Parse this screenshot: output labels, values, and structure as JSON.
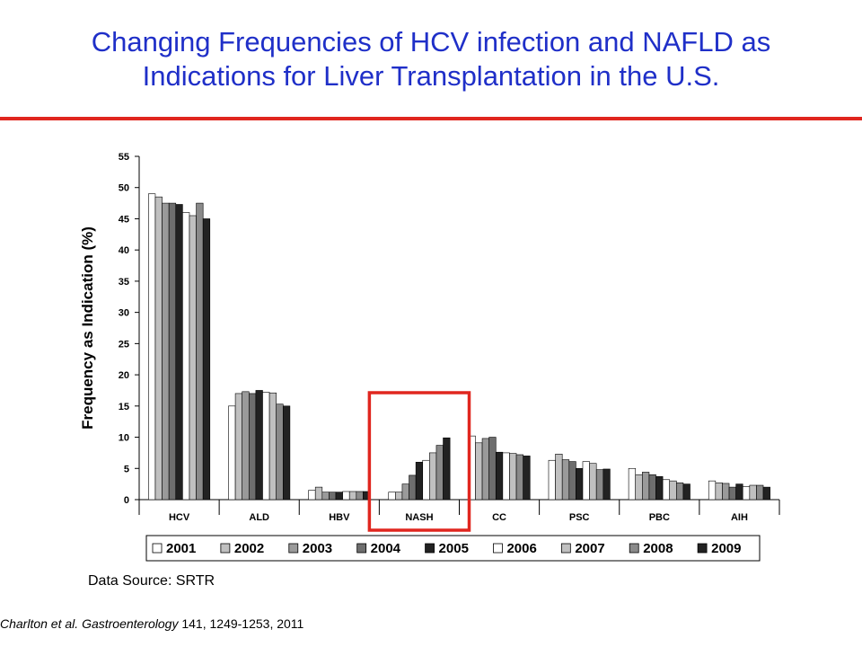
{
  "slide": {
    "title_line1": "Changing Frequencies of HCV infection and NAFLD as",
    "title_line2": "Indications for Liver Transplantation in the U.S.",
    "data_source": "Data Source: SRTR",
    "citation_authors": "Charlton et al.",
    "citation_journal": "Gastroenterology",
    "citation_rest": "141, 1249-1253, 2011",
    "accent_color": "#e0261f",
    "title_color": "#1f2fc8"
  },
  "chart_data": {
    "type": "bar",
    "title": "",
    "xlabel": "",
    "ylabel": "Frequency as Indication (%)",
    "ylim": [
      0,
      55
    ],
    "yticks": [
      0,
      5,
      10,
      15,
      20,
      25,
      30,
      35,
      40,
      45,
      50,
      55
    ],
    "categories": [
      "HCV",
      "ALD",
      "HBV",
      "NASH",
      "CC",
      "PSC",
      "PBC",
      "AIH"
    ],
    "highlighted_category": "NASH",
    "legend_position": "bottom",
    "series": [
      {
        "name": "2001",
        "color": "#ffffff",
        "values": [
          49,
          15,
          1.5,
          1.2,
          10.2,
          6.3,
          5.0,
          3.0
        ]
      },
      {
        "name": "2002",
        "color": "#c0c0c0",
        "values": [
          48.5,
          17,
          2,
          1.2,
          9.1,
          7.3,
          4.0,
          2.7
        ]
      },
      {
        "name": "2003",
        "color": "#9a9a9a",
        "values": [
          47.5,
          17.3,
          1.2,
          2.5,
          9.8,
          6.4,
          4.4,
          2.6
        ]
      },
      {
        "name": "2004",
        "color": "#6e6e6e",
        "values": [
          47.5,
          17,
          1.2,
          3.9,
          10,
          6.1,
          4.0,
          2.0
        ]
      },
      {
        "name": "2005",
        "color": "#222222",
        "values": [
          47.3,
          17.5,
          1.2,
          6.0,
          7.6,
          5.0,
          3.7,
          2.5
        ]
      },
      {
        "name": "2006",
        "color": "#ffffff",
        "values": [
          46,
          17.2,
          1.3,
          6.3,
          7.5,
          6.1,
          3.2,
          2.1
        ]
      },
      {
        "name": "2007",
        "color": "#c0c0c0",
        "values": [
          45.5,
          17.1,
          1.3,
          7.5,
          7.4,
          5.8,
          3.0,
          2.3
        ]
      },
      {
        "name": "2008",
        "color": "#8a8a8a",
        "values": [
          47.5,
          15.3,
          1.3,
          8.7,
          7.2,
          4.8,
          2.7,
          2.3
        ]
      },
      {
        "name": "2009",
        "color": "#222222",
        "values": [
          45,
          15,
          1.3,
          9.9,
          7.0,
          4.9,
          2.5,
          2.0
        ]
      }
    ]
  }
}
